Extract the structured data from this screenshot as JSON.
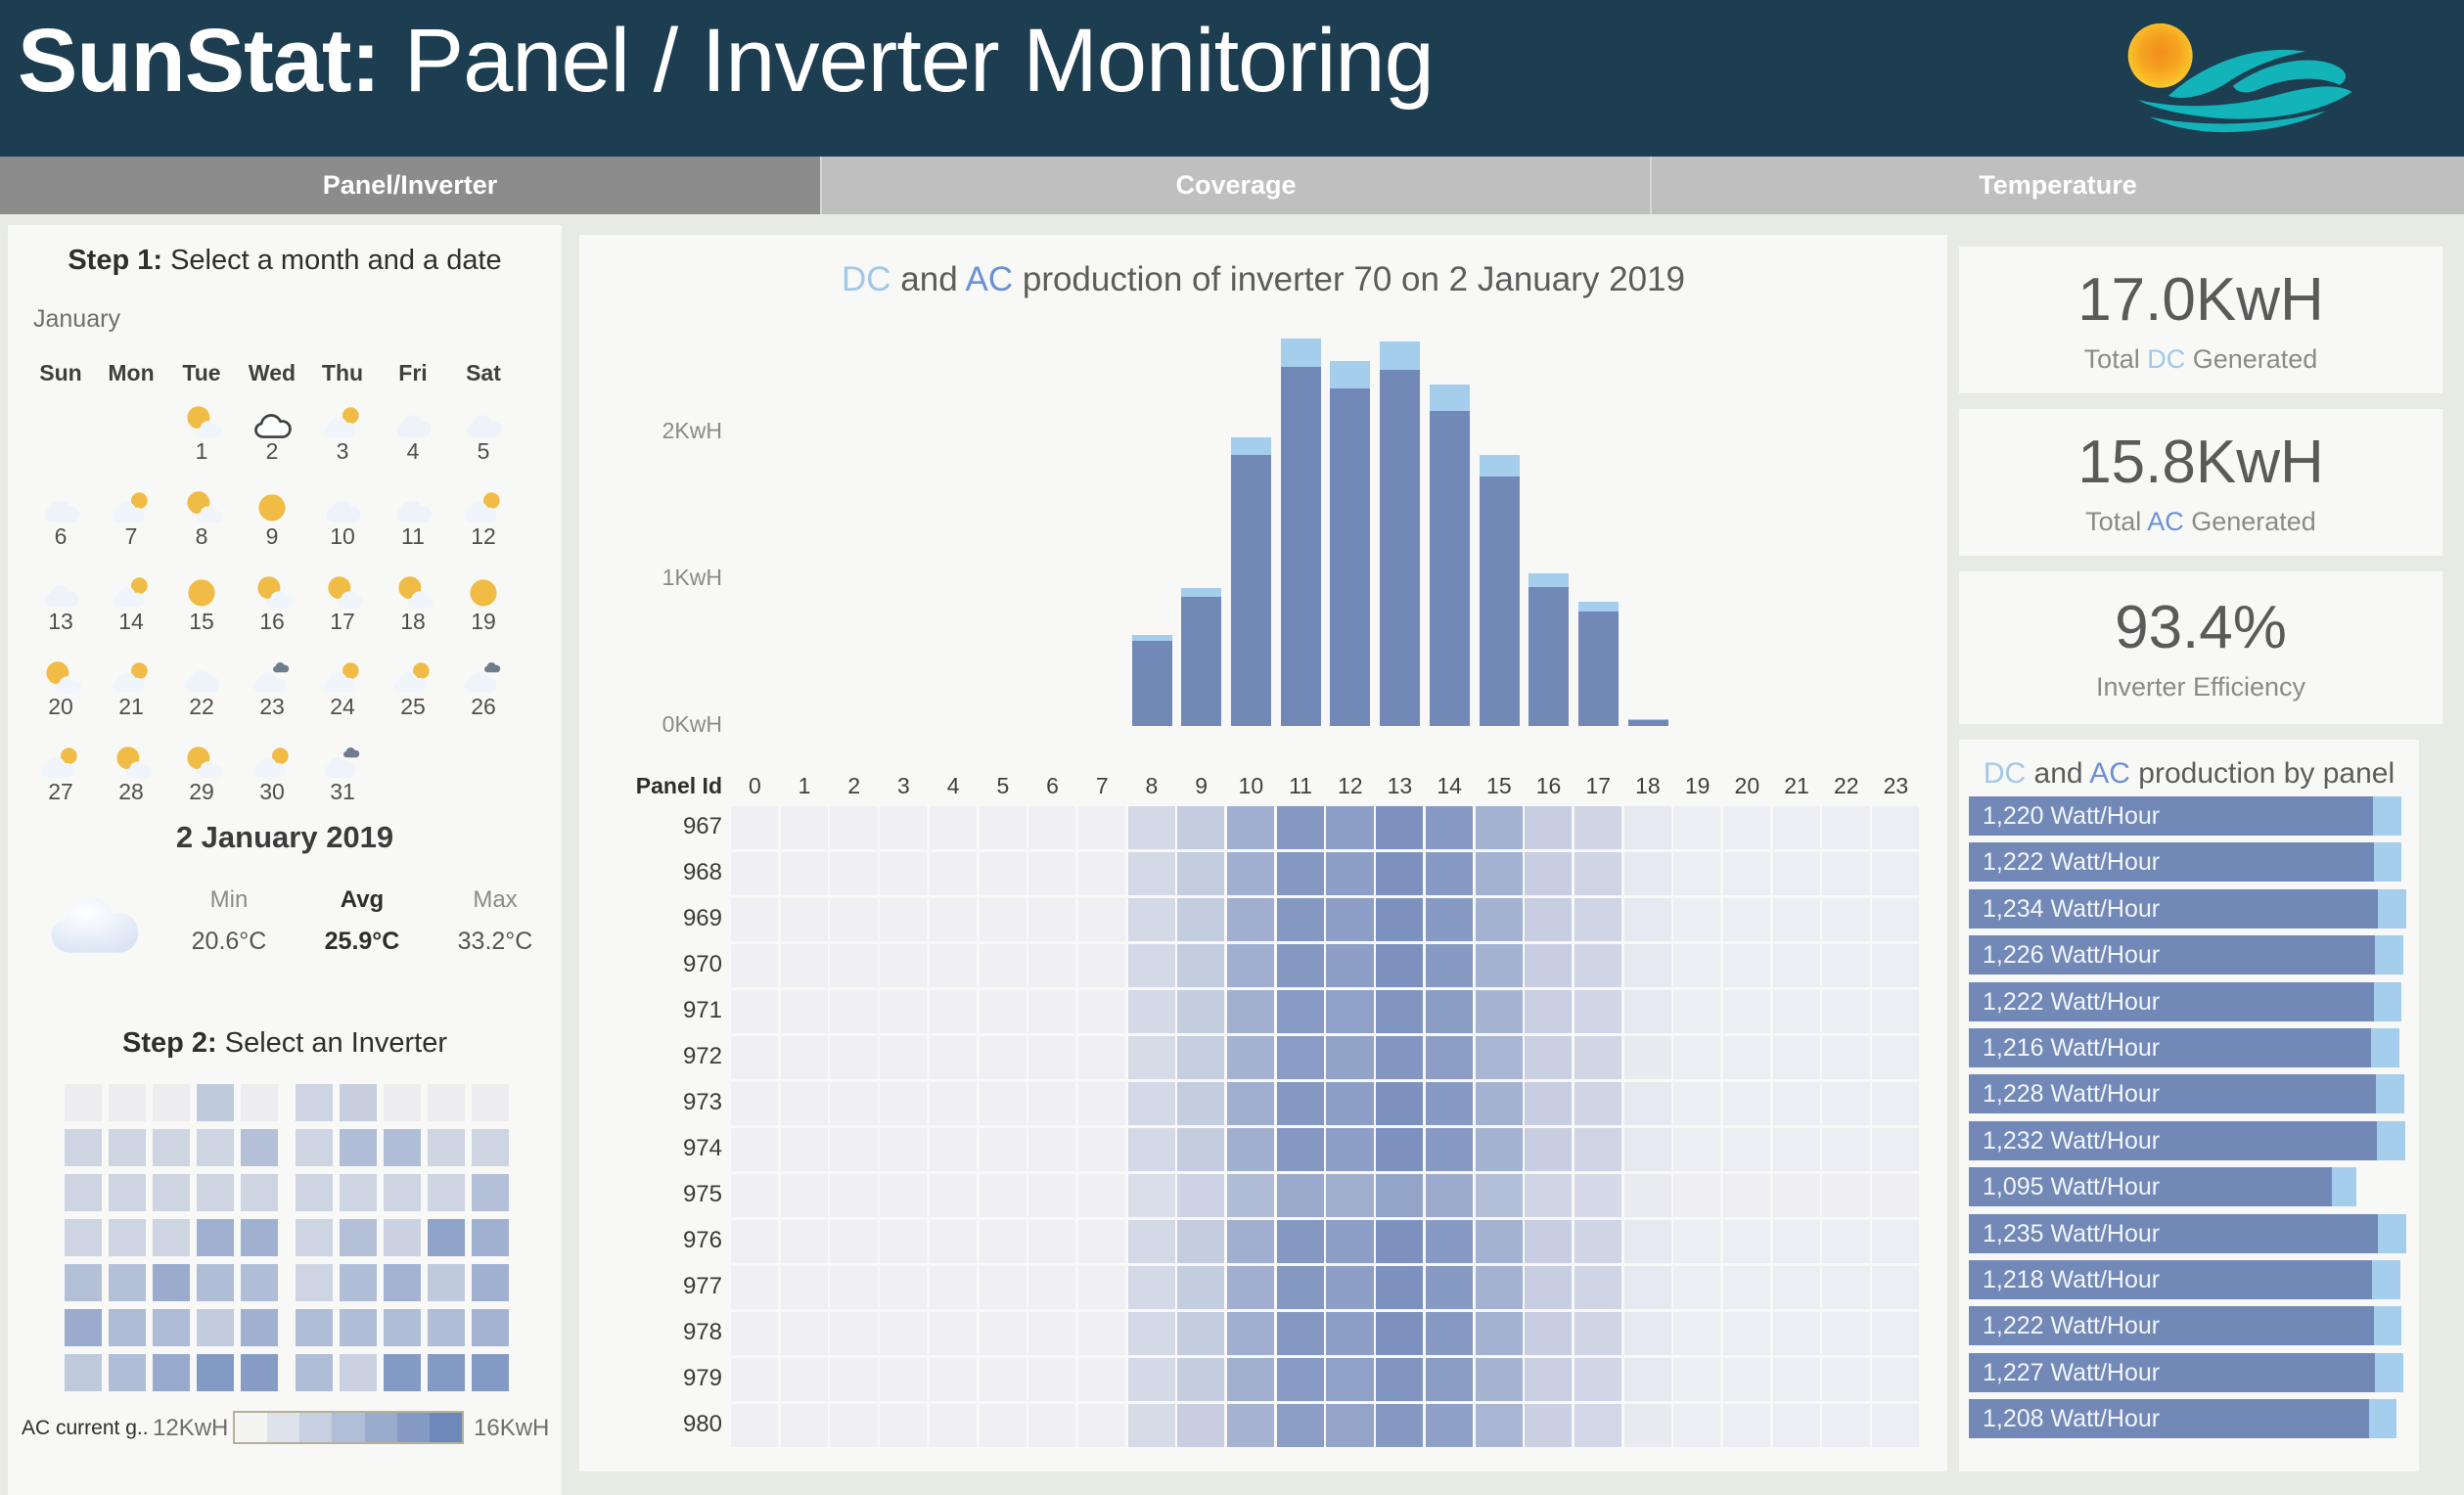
{
  "colors": {
    "header_bg": "#1d3d50",
    "tab_active": "#8c8c8c",
    "tab_inactive": "#bfbfbf",
    "bar_ac": "#7289b8",
    "bar_dc": "#a5cdec",
    "heat_zero": "#f0f0f4",
    "heat_full": "#667fb4",
    "grid_zero": "#ededef",
    "grid_full": "#6d88bb",
    "dc_text": "#a0c8e8",
    "ac_text": "#6b91d4"
  },
  "header": {
    "title_bold": "SunStat:",
    "title_rest": " Panel / Inverter Monitoring",
    "logo": "sun-over-waves"
  },
  "tabs": [
    {
      "label": "Panel/Inverter",
      "active": true
    },
    {
      "label": "Coverage",
      "active": false
    },
    {
      "label": "Temperature",
      "active": false
    }
  ],
  "step1": {
    "heading_bold": "Step 1:",
    "heading_rest": " Select a month and a date",
    "month": "January",
    "day_names": [
      "Sun",
      "Mon",
      "Tue",
      "Wed",
      "Thu",
      "Fri",
      "Sat"
    ],
    "start_offset": 2,
    "days": [
      {
        "n": "1",
        "icon": "sun-cloud"
      },
      {
        "n": "2",
        "icon": "cloud",
        "selected": true
      },
      {
        "n": "3",
        "icon": "partly"
      },
      {
        "n": "4",
        "icon": "cloud"
      },
      {
        "n": "5",
        "icon": "cloud"
      },
      {
        "n": "6",
        "icon": "cloud"
      },
      {
        "n": "7",
        "icon": "partly"
      },
      {
        "n": "8",
        "icon": "sun-cloud"
      },
      {
        "n": "9",
        "icon": "sun"
      },
      {
        "n": "10",
        "icon": "cloud"
      },
      {
        "n": "11",
        "icon": "cloud"
      },
      {
        "n": "12",
        "icon": "partly"
      },
      {
        "n": "13",
        "icon": "cloud"
      },
      {
        "n": "14",
        "icon": "partly"
      },
      {
        "n": "15",
        "icon": "sun"
      },
      {
        "n": "16",
        "icon": "sun-cloud"
      },
      {
        "n": "17",
        "icon": "sun-cloud"
      },
      {
        "n": "18",
        "icon": "sun-cloud"
      },
      {
        "n": "19",
        "icon": "sun"
      },
      {
        "n": "20",
        "icon": "sun-cloud"
      },
      {
        "n": "21",
        "icon": "partly"
      },
      {
        "n": "22",
        "icon": "cloud"
      },
      {
        "n": "23",
        "icon": "cloud-dark"
      },
      {
        "n": "24",
        "icon": "partly"
      },
      {
        "n": "25",
        "icon": "partly"
      },
      {
        "n": "26",
        "icon": "cloud-dark"
      },
      {
        "n": "27",
        "icon": "partly"
      },
      {
        "n": "28",
        "icon": "sun-cloud"
      },
      {
        "n": "29",
        "icon": "sun-cloud"
      },
      {
        "n": "30",
        "icon": "partly"
      },
      {
        "n": "31",
        "icon": "cloud-dark"
      }
    ],
    "selected_date": "2 January 2019",
    "summary": {
      "icon": "cloud",
      "cols": [
        {
          "label": "Min",
          "value": "20.6°C",
          "bold": false
        },
        {
          "label": "Avg",
          "value": "25.9°C",
          "bold": true
        },
        {
          "label": "Max",
          "value": "33.2°C",
          "bold": false
        }
      ]
    }
  },
  "step2": {
    "heading_bold": "Step 2:",
    "heading_rest": " Select an Inverter",
    "grids": [
      [
        [
          0,
          0,
          0,
          1.4,
          0
        ],
        [
          1,
          1,
          1,
          1,
          1.8
        ],
        [
          1,
          1,
          1,
          1,
          1
        ],
        [
          1,
          1,
          1,
          2.4,
          2.4
        ],
        [
          1.8,
          1.8,
          2.6,
          1.9,
          1.9
        ],
        [
          2.6,
          2,
          2,
          1.3,
          2.4
        ],
        [
          1.4,
          1.9,
          2.7,
          3.3,
          3.2
        ]
      ],
      [
        [
          1,
          1.2,
          0,
          0,
          0
        ],
        [
          1,
          1.9,
          1.9,
          1,
          1
        ],
        [
          1,
          1,
          1,
          1,
          1.8
        ],
        [
          1,
          1.8,
          1.1,
          2.9,
          2.4
        ],
        [
          1,
          1.9,
          2.3,
          1.4,
          2.4
        ],
        [
          1.9,
          1.9,
          1.9,
          1.9,
          2.3
        ],
        [
          1.9,
          1.1,
          3.3,
          3.3,
          3.3
        ]
      ]
    ],
    "legend": {
      "label": "AC current g..",
      "min": "12KwH",
      "max": "16KwH",
      "steps": 7
    }
  },
  "main": {
    "title": {
      "dc": "DC",
      "and": " and ",
      "ac": "AC",
      "rest": " production of inverter 70 on 2 January 2019"
    },
    "y_ticks": [
      {
        "label": "2KwH",
        "v": 2
      },
      {
        "label": "1KwH",
        "v": 1
      },
      {
        "label": "0KwH",
        "v": 0
      }
    ],
    "x_axis_name": "Panel Id"
  },
  "chart_data": [
    {
      "type": "bar",
      "title": "DC and AC production of inverter 70 on 2 January 2019",
      "x": [
        "0",
        "1",
        "2",
        "3",
        "4",
        "5",
        "6",
        "7",
        "8",
        "9",
        "10",
        "11",
        "12",
        "13",
        "14",
        "15",
        "16",
        "17",
        "18",
        "19",
        "20",
        "21",
        "22",
        "23"
      ],
      "series": [
        {
          "name": "DC",
          "color": "#a5cdec",
          "values": [
            0,
            0,
            0,
            0,
            0,
            0,
            0,
            0,
            0.62,
            0.94,
            1.97,
            2.64,
            2.49,
            2.62,
            2.33,
            1.85,
            1.04,
            0.85,
            0.05,
            0,
            0,
            0,
            0,
            0
          ]
        },
        {
          "name": "AC",
          "color": "#7289b8",
          "values": [
            0,
            0,
            0,
            0,
            0,
            0,
            0,
            0,
            0.58,
            0.88,
            1.85,
            2.45,
            2.3,
            2.43,
            2.15,
            1.7,
            0.95,
            0.78,
            0.04,
            0,
            0,
            0,
            0,
            0
          ]
        }
      ],
      "ylabel": "KwH",
      "ylim": [
        0,
        2.8
      ],
      "yticks": [
        "0KwH",
        "1KwH",
        "2KwH"
      ],
      "grid": false,
      "legend_position": "none"
    },
    {
      "type": "heatmap",
      "rows": [
        "967",
        "968",
        "969",
        "970",
        "971",
        "972",
        "973",
        "974",
        "975",
        "976",
        "977",
        "978",
        "979",
        "980"
      ],
      "cols": [
        "0",
        "1",
        "2",
        "3",
        "4",
        "5",
        "6",
        "7",
        "8",
        "9",
        "10",
        "11",
        "12",
        "13",
        "14",
        "15",
        "16",
        "17",
        "18",
        "19",
        "20",
        "21",
        "22",
        "23"
      ],
      "hour_profile": [
        0,
        0,
        0,
        0,
        0,
        0,
        0,
        0,
        0.2,
        0.32,
        0.58,
        0.78,
        0.72,
        0.84,
        0.76,
        0.55,
        0.3,
        0.24,
        0.06,
        0.02,
        0.02,
        0.02,
        0.02,
        0.02
      ],
      "row_factor": [
        1,
        1,
        1,
        1,
        0.97,
        0.95,
        1,
        1,
        0.8,
        1,
        1,
        1,
        0.97,
        0.93
      ],
      "color_scale": {
        "min_label": "12KwH",
        "max_label": "16KwH"
      }
    },
    {
      "type": "bar",
      "orientation": "horizontal",
      "title": "DC and AC production by panel",
      "categories": [
        "967",
        "968",
        "969",
        "970",
        "971",
        "972",
        "973",
        "974",
        "975",
        "976",
        "977",
        "978",
        "979",
        "980"
      ],
      "values": [
        1220,
        1222,
        1234,
        1226,
        1222,
        1216,
        1228,
        1232,
        1095,
        1235,
        1218,
        1222,
        1227,
        1208
      ],
      "labels": [
        "1,220 Watt/Hour",
        "1,222 Watt/Hour",
        "1,234 Watt/Hour",
        "1,226 Watt/Hour",
        "1,222 Watt/Hour",
        "1,216 Watt/Hour",
        "1,228 Watt/Hour",
        "1,232 Watt/Hour",
        "1,095 Watt/Hour",
        "1,235 Watt/Hour",
        "1,218 Watt/Hour",
        "1,222 Watt/Hour",
        "1,227 Watt/Hour",
        "1,208 Watt/Hour"
      ],
      "unit": "Watt/Hour",
      "dc_tip_ratio": 1.07,
      "xlim": [
        0,
        1330
      ]
    }
  ],
  "kpis": [
    {
      "value": "17.0KwH",
      "label_pre": "Total ",
      "label_word": "DC",
      "label_post": " Generated"
    },
    {
      "value": "15.8KwH",
      "label_pre": "Total ",
      "label_word": "AC",
      "label_post": " Generated"
    },
    {
      "value": "93.4%",
      "label_pre": "Inverter Efficiency",
      "label_word": "",
      "label_post": ""
    }
  ],
  "panel_chart_title": {
    "dc": "DC",
    "and": " and ",
    "ac": "AC",
    "rest": " production by panel"
  }
}
